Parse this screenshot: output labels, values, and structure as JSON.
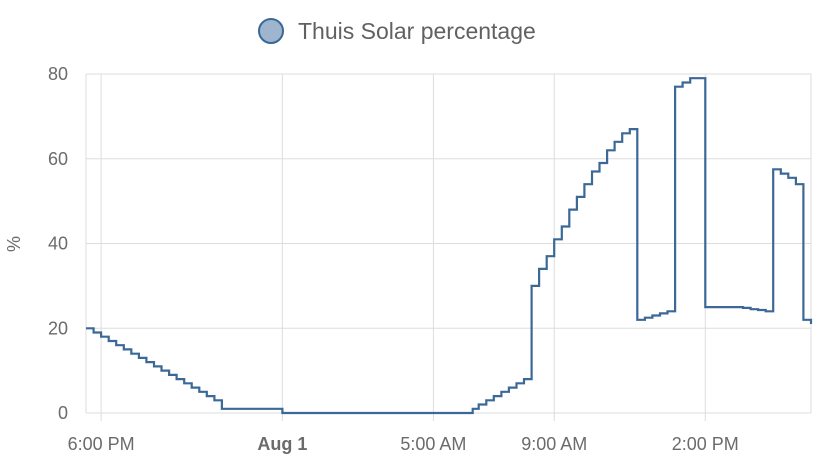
{
  "chart_data": {
    "type": "line",
    "line_style": "step",
    "title": "",
    "xlabel": "",
    "ylabel": "%",
    "ylim": [
      0,
      80
    ],
    "y_ticks": [
      0,
      20,
      40,
      60,
      80
    ],
    "x_range_hours": [
      -6.5,
      17.5
    ],
    "x_ticks": [
      {
        "label": "6:00 PM",
        "hour": -6,
        "bold": false
      },
      {
        "label": "Aug 1",
        "hour": 0,
        "bold": true
      },
      {
        "label": "5:00 AM",
        "hour": 5,
        "bold": false
      },
      {
        "label": "9:00 AM",
        "hour": 9,
        "bold": false
      },
      {
        "label": "2:00 PM",
        "hour": 14,
        "bold": false
      }
    ],
    "grid": true,
    "legend_position": "top-center",
    "series": [
      {
        "name": "Thuis Solar percentage",
        "color": "#3b6896",
        "legend_fill": "#9fb5cf",
        "x": [
          -6.5,
          -6.25,
          -6.0,
          -5.75,
          -5.5,
          -5.25,
          -5.0,
          -4.75,
          -4.5,
          -4.25,
          -4.0,
          -3.75,
          -3.5,
          -3.25,
          -3.0,
          -2.75,
          -2.5,
          -2.25,
          -2.0,
          0.0,
          2.0,
          4.0,
          6.0,
          6.3,
          6.5,
          6.75,
          7.0,
          7.25,
          7.5,
          7.75,
          8.0,
          8.25,
          8.5,
          8.75,
          9.0,
          9.25,
          9.5,
          9.75,
          10.0,
          10.25,
          10.5,
          10.75,
          11.0,
          11.25,
          11.5,
          11.75,
          12.0,
          12.25,
          12.5,
          12.75,
          13.0,
          13.25,
          13.5,
          14.0,
          14.5,
          15.0,
          15.25,
          15.5,
          15.75,
          16.0,
          16.25,
          16.5,
          16.75,
          17.0,
          17.25,
          17.5
        ],
        "y": [
          20,
          19,
          18,
          17,
          16,
          15,
          14,
          13,
          12,
          11,
          10,
          9,
          8,
          7,
          6,
          5,
          4,
          3,
          1,
          0,
          0,
          0,
          0,
          1,
          2,
          3,
          4,
          5,
          6,
          7,
          8,
          30,
          34,
          37,
          41,
          44,
          48,
          51,
          54,
          57,
          59,
          62,
          64,
          66,
          67,
          22,
          22.5,
          23,
          23.5,
          24,
          77,
          78,
          79,
          25,
          25,
          25,
          24.8,
          24.5,
          24.3,
          24,
          57.5,
          56.5,
          55.5,
          54,
          22,
          21
        ]
      }
    ]
  }
}
